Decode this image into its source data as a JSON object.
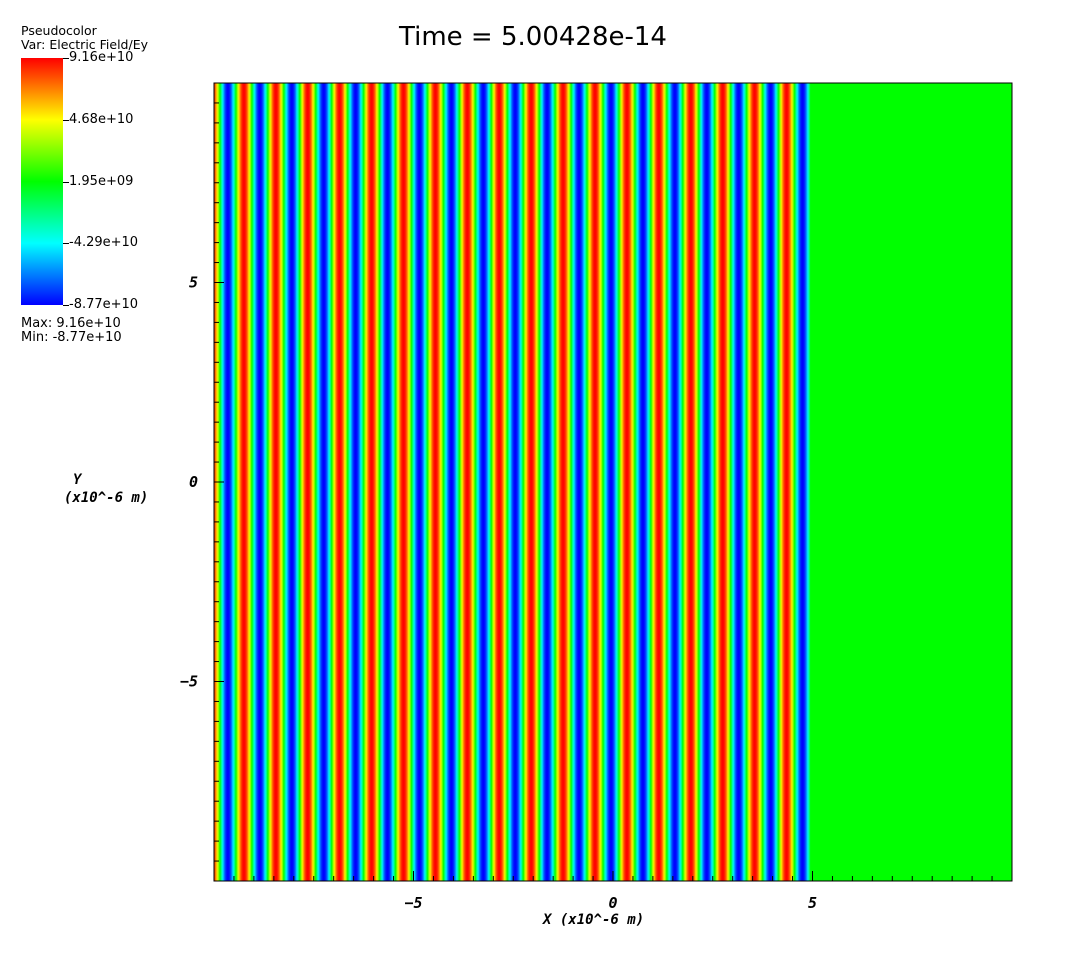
{
  "chart_data": {
    "type": "heatmap",
    "title": "Time = 5.00428e-14",
    "variable": "Var: Electric Field/Ey",
    "legend": {
      "title": "Pseudocolor",
      "labels": [
        "9.16e+10",
        "4.68e+10",
        "1.95e+09",
        "-4.29e+10",
        "-8.77e+10"
      ],
      "max_label": "Max:  9.16e+10",
      "min_label": "Min: -8.77e+10",
      "max": 91600000000.0,
      "min": -87700000000.0,
      "colormap": [
        "#0000ff",
        "#00ffff",
        "#00ff00",
        "#ffff00",
        "#ff0000"
      ],
      "placement": "top-left"
    },
    "xlabel": "X  (x10^-6 m)",
    "ylabel_line1": "Y",
    "ylabel_line2": "(x10^-6 m)",
    "xlim": [
      -10,
      10
    ],
    "ylim": [
      -10,
      10
    ],
    "x_major_ticks": [
      -5,
      0,
      5
    ],
    "y_major_ticks": [
      -5,
      0,
      5
    ],
    "x_tick_labels": [
      "−5",
      "0",
      "5"
    ],
    "y_tick_labels": [
      "−5",
      "0",
      "5"
    ],
    "minor_tick_step": 0.5,
    "field": {
      "description_values": {
        "wave_region_x": [
          -10,
          4.95
        ],
        "wavelength": 0.8,
        "amplitude_max": 91600000000.0,
        "amplitude_min": -87700000000.0,
        "uniform_value_beyond_front": 1950000000.0
      }
    }
  }
}
